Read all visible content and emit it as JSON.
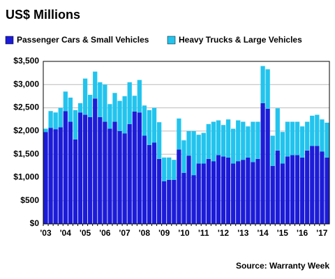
{
  "chart_data": {
    "type": "stacked_bar",
    "title": "US$ Millions",
    "source": "Source: Warranty Week",
    "categories": [
      "'03",
      null,
      null,
      null,
      "'04",
      null,
      null,
      null,
      "'05",
      null,
      null,
      null,
      "'06",
      null,
      null,
      null,
      "'07",
      null,
      null,
      null,
      "'08",
      null,
      null,
      null,
      "'09",
      null,
      null,
      null,
      "'10",
      null,
      null,
      null,
      "'11",
      null,
      null,
      null,
      "'12",
      null,
      null,
      null,
      "'13",
      null,
      null,
      null,
      "'14",
      null,
      null,
      null,
      "'15",
      null,
      null,
      null,
      "'16",
      null,
      null,
      null,
      "'17",
      null
    ],
    "series": [
      {
        "name": "Passenger Cars & Small Vehicles",
        "color": "#1c1cd8",
        "values": [
          1980,
          2070,
          2040,
          2080,
          2430,
          2200,
          1820,
          2400,
          2350,
          2300,
          2700,
          2300,
          2200,
          2050,
          2200,
          2000,
          1950,
          2150,
          2420,
          2400,
          1900,
          1700,
          1750,
          1400,
          920,
          950,
          950,
          1600,
          1100,
          1470,
          1050,
          1300,
          1300,
          1400,
          1350,
          1480,
          1450,
          1430,
          1300,
          1350,
          1380,
          1430,
          1330,
          1400,
          2600,
          2480,
          1250,
          1580,
          1300,
          1450,
          1480,
          1480,
          1430,
          1580,
          1680,
          1680,
          1560,
          1430
        ]
      },
      {
        "name": "Heavy Trucks & Large Vehicles",
        "color": "#22c4ee",
        "values": [
          70,
          360,
          360,
          420,
          420,
          520,
          630,
          200,
          780,
          480,
          580,
          750,
          800,
          530,
          620,
          650,
          800,
          900,
          340,
          700,
          650,
          750,
          750,
          790,
          510,
          480,
          430,
          670,
          700,
          530,
          950,
          620,
          660,
          750,
          850,
          750,
          680,
          820,
          750,
          880,
          820,
          670,
          870,
          800,
          800,
          850,
          650,
          910,
          680,
          750,
          720,
          720,
          670,
          620,
          650,
          670,
          690,
          750
        ]
      }
    ],
    "ylim": [
      0,
      3500
    ],
    "yticks": [
      {
        "value": 0,
        "label": "$0"
      },
      {
        "value": 500,
        "label": "$500"
      },
      {
        "value": 1000,
        "label": "$1,000"
      },
      {
        "value": 1500,
        "label": "$1,500"
      },
      {
        "value": 2000,
        "label": "$2,000"
      },
      {
        "value": 2500,
        "label": "$2,500"
      },
      {
        "value": 3000,
        "label": "$3,000"
      },
      {
        "value": 3500,
        "label": "$3,500"
      }
    ],
    "grid": true
  }
}
